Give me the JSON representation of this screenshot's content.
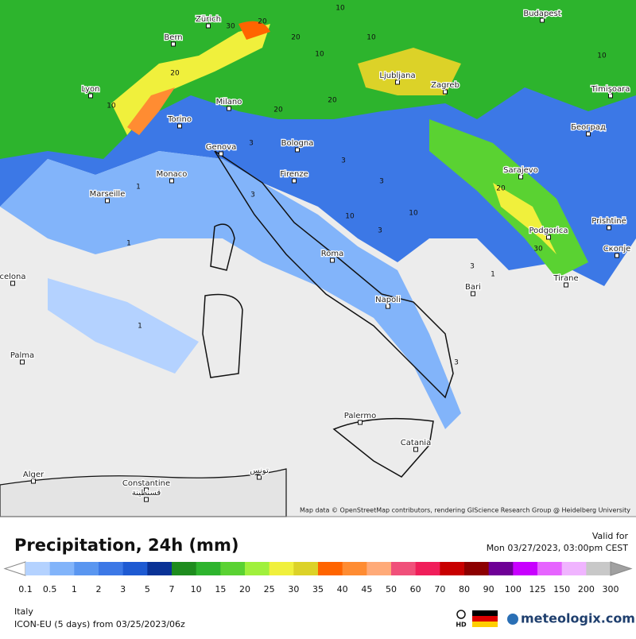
{
  "map": {
    "attribution": "Map data © OpenStreetMap contributors, rendering GIScience Research Group @ Heidelberg University",
    "cities": [
      "Zürich",
      "Budapest",
      "Bern",
      "Lyon",
      "Ljubljana",
      "Zagreb",
      "Timişoara",
      "Milano",
      "Torino",
      "Београд",
      "Genova",
      "Bologna",
      "Monaco",
      "Firenze",
      "Marseille",
      "Sarajevo",
      "Prishtinë",
      "Podgorica",
      "Скопје",
      "Roma",
      "Tirane",
      "celona",
      "Bari",
      "Napoli",
      "Palma",
      "Palermo",
      "Catania",
      "Alger",
      "Constantine",
      "قسنطينة",
      "تونس"
    ],
    "contour_labels": [
      "10",
      "20",
      "20",
      "10",
      "10",
      "20",
      "30",
      "20",
      "10",
      "20",
      "3",
      "3",
      "1",
      "3",
      "10",
      "10",
      "3",
      "1",
      "3",
      "20",
      "30",
      "10",
      "3",
      "1",
      "1",
      "3"
    ]
  },
  "header": {
    "title": "Precipitation, 24h (mm)",
    "valid_label": "Valid for",
    "valid_time": "Mon 03/27/2023, 03:00pm CEST"
  },
  "legend": {
    "levels": [
      0.1,
      0.5,
      1,
      2,
      3,
      5,
      7,
      10,
      15,
      20,
      25,
      30,
      35,
      40,
      45,
      50,
      60,
      70,
      80,
      90,
      100,
      125,
      150,
      200,
      300
    ],
    "colors": [
      "#b4d2ff",
      "#82b4fa",
      "#5a96f0",
      "#3c78e6",
      "#1e5ad2",
      "#0a3296",
      "#1e8c1e",
      "#2db42d",
      "#5ad232",
      "#a0f03c",
      "#f0f03c",
      "#dcd228",
      "#ff6400",
      "#ff8c32",
      "#ffaa78",
      "#f0507a",
      "#f01e5a",
      "#c80000",
      "#8c0000",
      "#6e0096",
      "#c800ff",
      "#e664ff",
      "#f0b4ff",
      "#c8c8c8"
    ]
  },
  "footer": {
    "region": "Italy",
    "model": "ICON-EU (5 days) from 03/25/2023/06z",
    "hd": "HD",
    "brand": "meteologix.com"
  }
}
